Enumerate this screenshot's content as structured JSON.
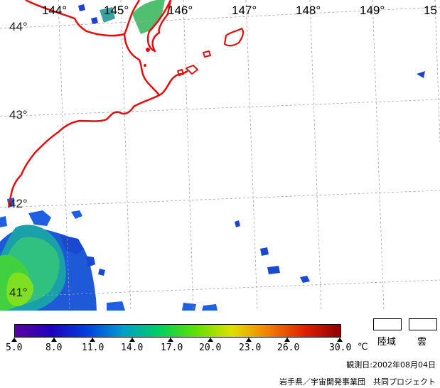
{
  "map": {
    "lon_labels": [
      "144°",
      "145°",
      "146°",
      "147°",
      "148°",
      "149°",
      "15"
    ],
    "lat_labels": [
      "44°",
      "43°",
      "42°",
      "41°"
    ]
  },
  "colorbar": {
    "labels": [
      "5.0",
      "8.0",
      "11.0",
      "14.0",
      "17.0",
      "20.0",
      "23.0",
      "26.0",
      "30.0"
    ],
    "unit": "℃",
    "colors": [
      "#5a00a0",
      "#2000c0",
      "#0040e0",
      "#00a0c8",
      "#00d060",
      "#60e000",
      "#e0e000",
      "#f08000",
      "#e02000",
      "#900000"
    ]
  },
  "legend": {
    "land": "陸域",
    "cloud": "雲"
  },
  "observation": "観測日:2002年08月04日",
  "credit": "岩手県／宇宙開発事業団　共同プロジェクト",
  "colors": {
    "coast": "#e01010",
    "grid": "#a0a0a0"
  }
}
